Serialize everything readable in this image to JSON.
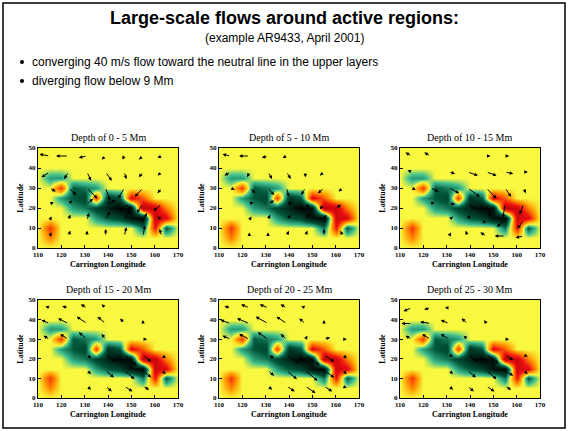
{
  "title": "Large-scale flows around active regions:",
  "subtitle": "(example AR9433, April 2001)",
  "bullets": [
    "converging 40 m/s flow toward the neutral line in the upper layers",
    "diverging flow below 9 Mm"
  ],
  "magnetogram": {
    "x": [
      110,
      115,
      120,
      125,
      130,
      135,
      140,
      145,
      150,
      155,
      160,
      165,
      170
    ],
    "y": [
      0,
      5,
      10,
      15,
      20,
      25,
      30,
      35,
      40,
      45,
      50
    ],
    "zlim": [
      -1,
      1
    ],
    "z": [
      [
        0,
        0,
        0,
        0,
        0,
        0,
        0,
        0,
        0,
        0,
        0,
        0,
        0
      ],
      [
        0,
        0.3,
        0,
        0,
        0,
        0,
        0,
        0,
        0,
        0,
        0,
        0,
        0
      ],
      [
        0,
        0.5,
        0,
        0,
        0,
        0,
        0,
        0,
        0,
        -0.4,
        0.6,
        -0.5,
        0
      ],
      [
        0,
        0,
        0,
        0,
        0,
        -0.3,
        -0.5,
        -0.6,
        -0.9,
        -1,
        0.8,
        0.7,
        0
      ],
      [
        0,
        0,
        0,
        -0.3,
        -0.4,
        -0.6,
        -0.8,
        -1,
        -0.9,
        0.9,
        0.8,
        0.3,
        0
      ],
      [
        0,
        0,
        -0.3,
        -0.5,
        -0.6,
        0.5,
        -0.7,
        -0.5,
        0.7,
        0.4,
        0,
        0,
        0
      ],
      [
        0,
        0,
        0.5,
        -0.5,
        -0.4,
        -0.3,
        0,
        0,
        0,
        0,
        0,
        0,
        0
      ],
      [
        0,
        -0.3,
        -0.3,
        0,
        0,
        0,
        0,
        0,
        0,
        0,
        0,
        0,
        0
      ],
      [
        0,
        0,
        0,
        0,
        0,
        0,
        0,
        0,
        0,
        0,
        0,
        0,
        0
      ],
      [
        0,
        0,
        0,
        0,
        0,
        0,
        0,
        0,
        0,
        0,
        0,
        0,
        0
      ],
      [
        0,
        0,
        0,
        0,
        0,
        0,
        0,
        0,
        0,
        0,
        0,
        0,
        0
      ]
    ]
  },
  "chart_data": [
    {
      "type": "quiver",
      "title": "Depth of 0 - 5 Mm",
      "x_label": "Carrington Longitude",
      "y_label": "Latitude",
      "xlim": [
        110,
        170
      ],
      "ylim": [
        0,
        50
      ],
      "xticks": [
        110,
        120,
        130,
        140,
        150,
        160,
        170
      ],
      "yticks": [
        0,
        10,
        20,
        30,
        40,
        50
      ],
      "x": [
        115,
        123,
        131,
        139,
        147,
        155,
        163
      ],
      "y": [
        6,
        14,
        22,
        30,
        38,
        46
      ],
      "u": [
        [
          5,
          5,
          0,
          0,
          5,
          5,
          -5
        ],
        [
          5,
          5,
          5,
          10,
          15,
          10,
          -10
        ],
        [
          10,
          10,
          15,
          25,
          20,
          -15,
          -20
        ],
        [
          15,
          20,
          25,
          10,
          -15,
          -20,
          -10
        ],
        [
          -20,
          -10,
          10,
          15,
          5,
          -10,
          -10
        ],
        [
          -25,
          -30,
          -20,
          -10,
          -5,
          -10,
          -10
        ]
      ],
      "v": [
        [
          10,
          15,
          15,
          20,
          25,
          30,
          20
        ],
        [
          10,
          15,
          20,
          25,
          30,
          20,
          10
        ],
        [
          5,
          10,
          15,
          10,
          -15,
          -25,
          -20
        ],
        [
          -10,
          -20,
          -30,
          -35,
          -30,
          -25,
          -15
        ],
        [
          -15,
          -20,
          -25,
          -25,
          -20,
          -15,
          -10
        ],
        [
          5,
          0,
          -5,
          -10,
          -10,
          -10,
          -5
        ]
      ]
    },
    {
      "type": "quiver",
      "title": "Depth of 5 - 10 Mm",
      "x_label": "Carrington Longitude",
      "y_label": "Latitude",
      "xlim": [
        110,
        170
      ],
      "ylim": [
        0,
        50
      ],
      "xticks": [
        110,
        120,
        130,
        140,
        150,
        160,
        170
      ],
      "yticks": [
        0,
        10,
        20,
        30,
        40,
        50
      ],
      "x": [
        115,
        123,
        131,
        139,
        147,
        155,
        163
      ],
      "y": [
        6,
        14,
        22,
        30,
        38,
        46
      ],
      "u": [
        [
          5,
          0,
          0,
          5,
          5,
          0,
          -5
        ],
        [
          5,
          5,
          5,
          10,
          10,
          5,
          -5
        ],
        [
          5,
          10,
          15,
          15,
          10,
          -10,
          -15
        ],
        [
          10,
          15,
          15,
          5,
          -10,
          -15,
          -10
        ],
        [
          -15,
          -5,
          10,
          10,
          0,
          -10,
          -5
        ],
        [
          -20,
          -25,
          -15,
          -10,
          -5,
          -5,
          -5
        ]
      ],
      "v": [
        [
          5,
          10,
          10,
          15,
          15,
          20,
          15
        ],
        [
          5,
          10,
          15,
          15,
          20,
          15,
          5
        ],
        [
          0,
          5,
          10,
          5,
          -10,
          -15,
          -10
        ],
        [
          -5,
          -15,
          -20,
          -25,
          -20,
          -15,
          -10
        ],
        [
          -10,
          -15,
          -20,
          -20,
          -15,
          -10,
          -5
        ],
        [
          5,
          0,
          -5,
          -5,
          -5,
          -5,
          0
        ]
      ]
    },
    {
      "type": "quiver",
      "title": "Depth of 10 - 15 Mm",
      "x_label": "Carrington Longitude",
      "y_label": "Latitude",
      "xlim": [
        110,
        170
      ],
      "ylim": [
        0,
        50
      ],
      "xticks": [
        110,
        120,
        130,
        140,
        150,
        160,
        170
      ],
      "yticks": [
        0,
        10,
        20,
        30,
        40,
        50
      ],
      "x": [
        115,
        123,
        131,
        139,
        147,
        155,
        163
      ],
      "y": [
        6,
        14,
        22,
        30,
        38,
        46
      ],
      "u": [
        [
          0,
          5,
          5,
          -5,
          -15,
          -25,
          -20
        ],
        [
          5,
          5,
          10,
          5,
          -10,
          -20,
          -15
        ],
        [
          5,
          10,
          15,
          20,
          10,
          -5,
          -10
        ],
        [
          10,
          20,
          25,
          30,
          25,
          15,
          5
        ],
        [
          -10,
          5,
          15,
          25,
          25,
          20,
          10
        ],
        [
          -15,
          -15,
          -5,
          5,
          10,
          10,
          5
        ]
      ],
      "v": [
        [
          0,
          5,
          10,
          15,
          10,
          0,
          -5
        ],
        [
          0,
          5,
          10,
          15,
          -10,
          -20,
          -25
        ],
        [
          0,
          5,
          0,
          -15,
          -35,
          -40,
          -30
        ],
        [
          -5,
          -10,
          -15,
          -25,
          -30,
          -25,
          -15
        ],
        [
          5,
          0,
          -5,
          -10,
          -10,
          -5,
          0
        ],
        [
          10,
          10,
          5,
          0,
          0,
          0,
          5
        ]
      ]
    },
    {
      "type": "quiver",
      "title": "Depth of 15 - 20 Mm",
      "x_label": "Carrington Longitude",
      "y_label": "Latitude",
      "xlim": [
        110,
        170
      ],
      "ylim": [
        0,
        50
      ],
      "xticks": [
        110,
        120,
        130,
        140,
        150,
        160,
        170
      ],
      "yticks": [
        0,
        10,
        20,
        30,
        40,
        50
      ],
      "x": [
        115,
        123,
        131,
        139,
        147,
        155,
        163
      ],
      "y": [
        6,
        14,
        22,
        30,
        38,
        46
      ],
      "u": [
        [
          0,
          5,
          10,
          15,
          20,
          15,
          5
        ],
        [
          0,
          5,
          10,
          20,
          25,
          20,
          10
        ],
        [
          -5,
          0,
          10,
          25,
          30,
          20,
          10
        ],
        [
          -15,
          -20,
          -20,
          -10,
          5,
          10,
          5
        ],
        [
          -20,
          -25,
          -25,
          -20,
          -10,
          0,
          0
        ],
        [
          -10,
          -15,
          -15,
          -10,
          -5,
          0,
          0
        ]
      ],
      "v": [
        [
          0,
          -5,
          -10,
          -15,
          -15,
          -10,
          -5
        ],
        [
          0,
          -5,
          -10,
          -20,
          -25,
          -20,
          -10
        ],
        [
          5,
          0,
          -10,
          -20,
          -30,
          -20,
          -10
        ],
        [
          10,
          15,
          20,
          15,
          5,
          0,
          0
        ],
        [
          10,
          15,
          20,
          20,
          15,
          10,
          5
        ],
        [
          5,
          5,
          10,
          10,
          5,
          5,
          0
        ]
      ]
    },
    {
      "type": "quiver",
      "title": "Depth of 20 - 25 Mm",
      "x_label": "Carrington Longitude",
      "y_label": "Latitude",
      "xlim": [
        110,
        170
      ],
      "ylim": [
        0,
        50
      ],
      "xticks": [
        110,
        120,
        130,
        140,
        150,
        160,
        170
      ],
      "yticks": [
        0,
        10,
        20,
        30,
        40,
        50
      ],
      "x": [
        115,
        123,
        131,
        139,
        147,
        155,
        163
      ],
      "y": [
        6,
        14,
        22,
        30,
        38,
        46
      ],
      "u": [
        [
          0,
          5,
          10,
          20,
          25,
          20,
          10
        ],
        [
          0,
          5,
          15,
          25,
          30,
          25,
          10
        ],
        [
          -5,
          5,
          15,
          30,
          35,
          25,
          10
        ],
        [
          -20,
          -25,
          -25,
          -15,
          5,
          15,
          10
        ],
        [
          -25,
          -30,
          -30,
          -25,
          -15,
          0,
          5
        ],
        [
          -15,
          -20,
          -20,
          -15,
          -10,
          0,
          0
        ]
      ],
      "v": [
        [
          0,
          -5,
          -10,
          -15,
          -20,
          -15,
          -5
        ],
        [
          0,
          -5,
          -15,
          -25,
          -30,
          -20,
          -10
        ],
        [
          5,
          0,
          -10,
          -25,
          -30,
          -20,
          -10
        ],
        [
          10,
          15,
          20,
          15,
          10,
          5,
          0
        ],
        [
          10,
          15,
          20,
          20,
          15,
          10,
          5
        ],
        [
          5,
          10,
          10,
          10,
          5,
          5,
          0
        ]
      ]
    },
    {
      "type": "quiver",
      "title": "Depth of 25 - 30 Mm",
      "x_label": "Carrington Longitude",
      "y_label": "Latitude",
      "xlim": [
        110,
        170
      ],
      "ylim": [
        0,
        50
      ],
      "xticks": [
        110,
        120,
        130,
        140,
        150,
        160,
        170
      ],
      "yticks": [
        0,
        10,
        20,
        30,
        40,
        50
      ],
      "x": [
        115,
        123,
        131,
        139,
        147,
        155,
        163
      ],
      "y": [
        6,
        14,
        22,
        30,
        38,
        46
      ],
      "u": [
        [
          0,
          5,
          10,
          15,
          20,
          15,
          5
        ],
        [
          0,
          5,
          10,
          20,
          25,
          20,
          10
        ],
        [
          -5,
          5,
          10,
          25,
          30,
          20,
          10
        ],
        [
          -15,
          -20,
          -20,
          -10,
          5,
          10,
          5
        ],
        [
          -25,
          -25,
          -20,
          -15,
          -5,
          0,
          5
        ],
        [
          -20,
          -15,
          -10,
          -5,
          0,
          5,
          5
        ]
      ],
      "v": [
        [
          0,
          -5,
          -10,
          -15,
          -15,
          -10,
          -5
        ],
        [
          0,
          -5,
          -10,
          -20,
          -25,
          -15,
          -10
        ],
        [
          5,
          0,
          -5,
          -20,
          -25,
          -15,
          -5
        ],
        [
          10,
          15,
          15,
          10,
          5,
          0,
          0
        ],
        [
          0,
          5,
          10,
          15,
          10,
          5,
          5
        ],
        [
          -10,
          -5,
          0,
          5,
          5,
          5,
          0
        ]
      ]
    }
  ]
}
